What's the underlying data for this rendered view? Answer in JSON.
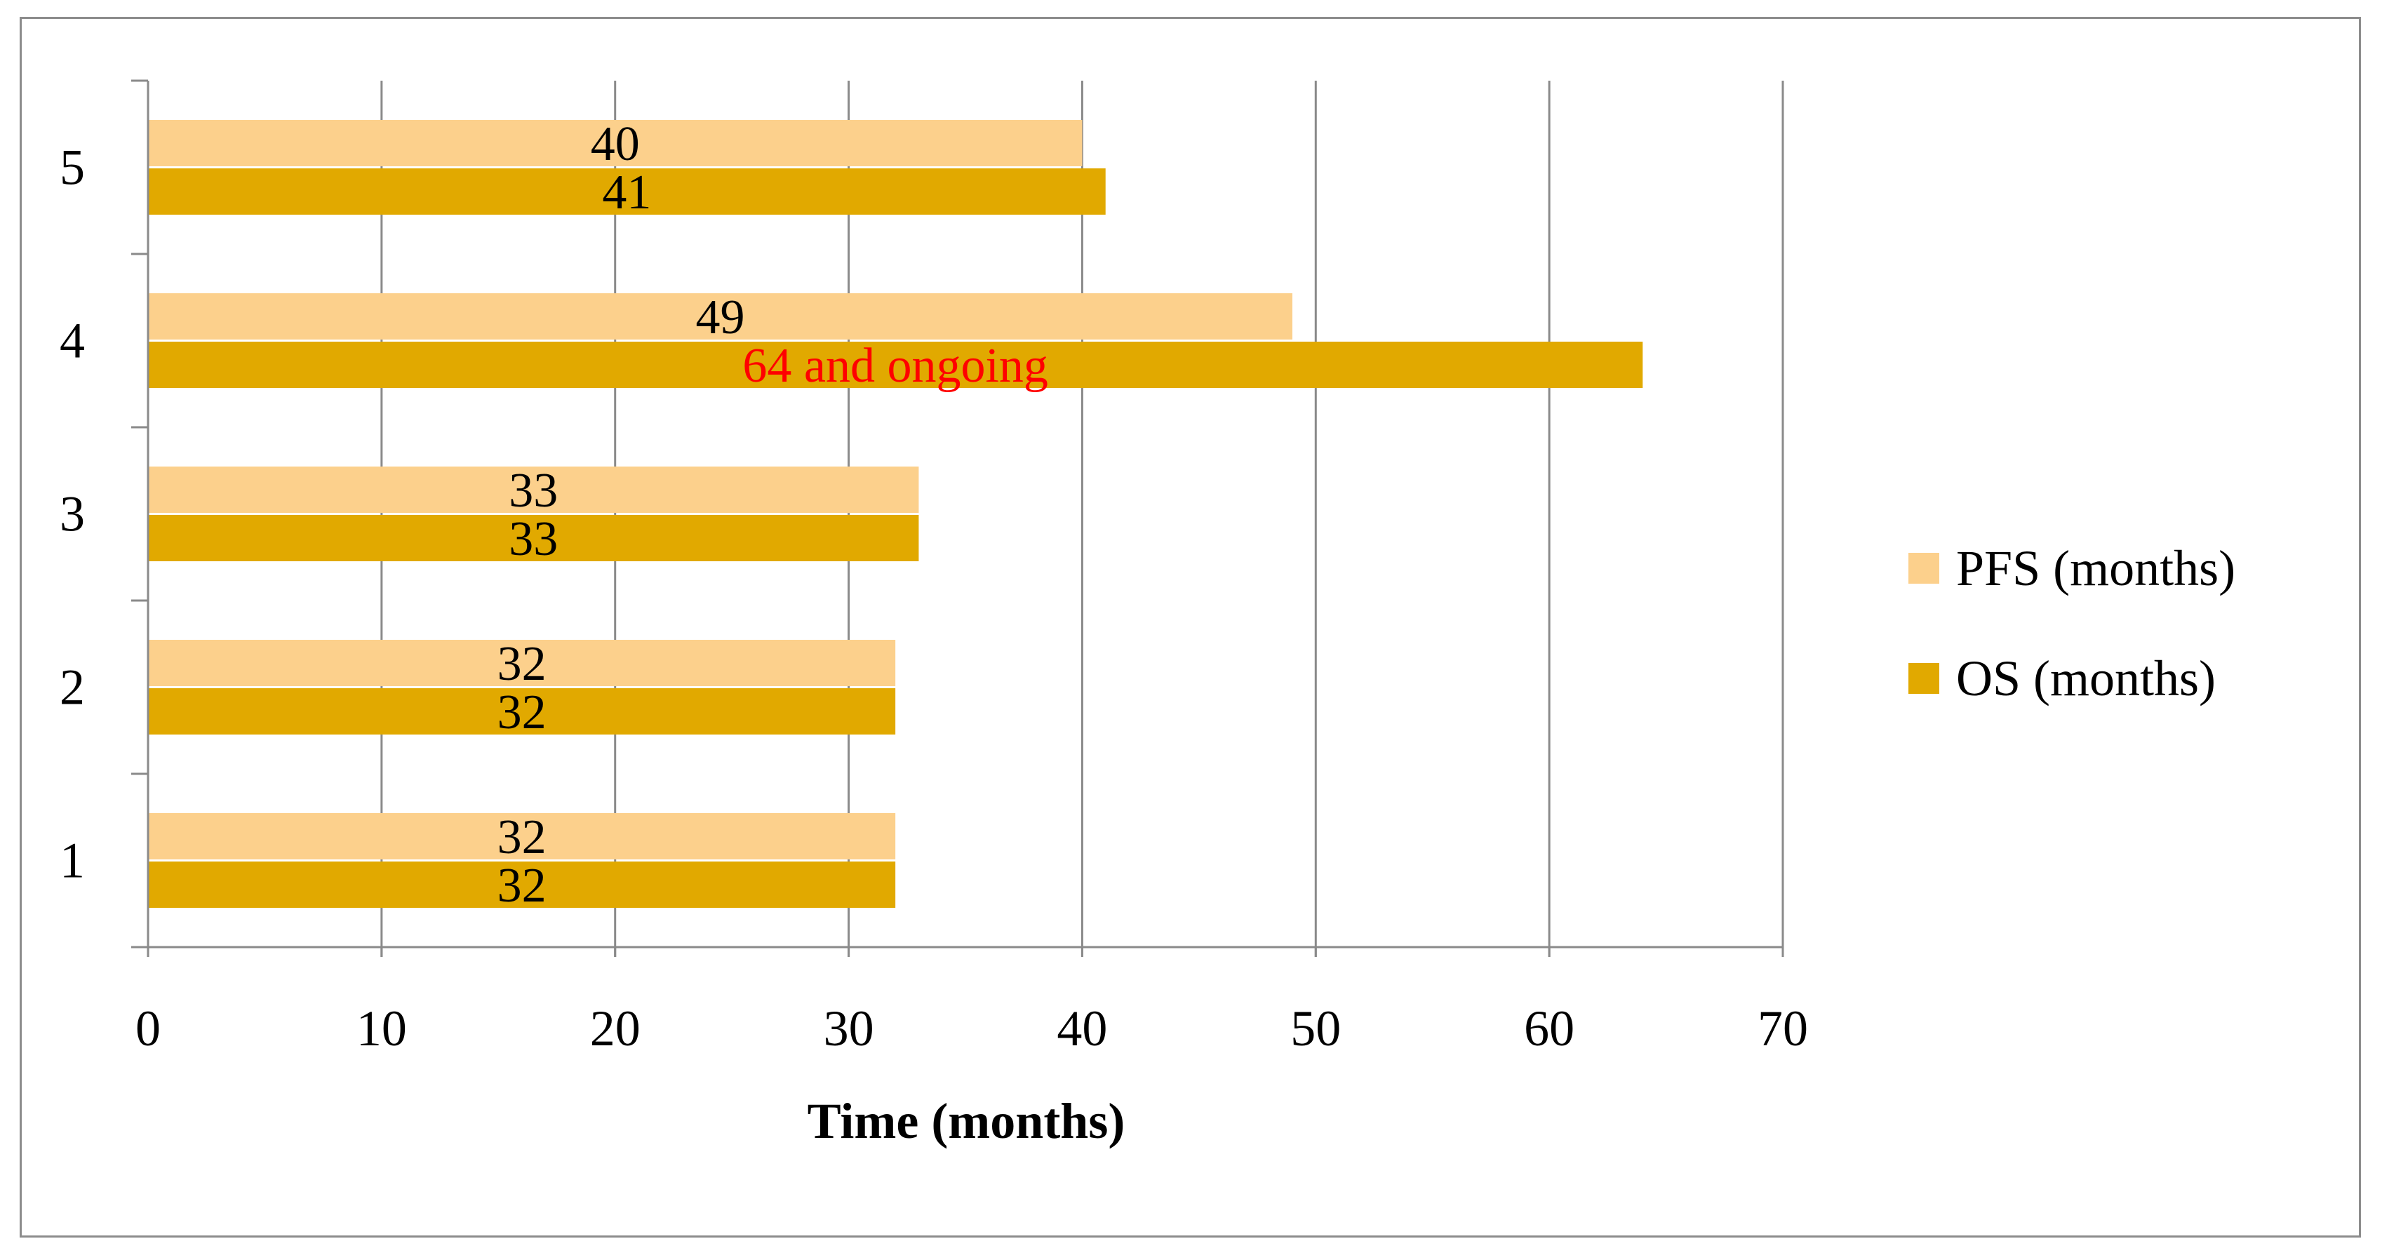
{
  "chart_data": {
    "type": "bar",
    "orientation": "horizontal",
    "categories": [
      "1",
      "2",
      "3",
      "4",
      "5"
    ],
    "series": [
      {
        "name": "PFS (months)",
        "color": "#FCD08C",
        "values": [
          32,
          32,
          33,
          49,
          40
        ],
        "labels": [
          "32",
          "32",
          "33",
          "49",
          "40"
        ],
        "label_colors": [
          "#000000",
          "#000000",
          "#000000",
          "#000000",
          "#000000"
        ]
      },
      {
        "name": "OS (months)",
        "color": "#E1A900",
        "values": [
          32,
          32,
          33,
          64,
          41
        ],
        "labels": [
          "32",
          "32",
          "33",
          "64 and ongoing",
          "41"
        ],
        "label_colors": [
          "#000000",
          "#000000",
          "#000000",
          "#FF0000",
          "#000000"
        ]
      }
    ],
    "xlabel": "Time (months)",
    "ylabel": "",
    "xlim": [
      0,
      70
    ],
    "xticks": [
      0,
      10,
      20,
      30,
      40,
      50,
      60,
      70
    ],
    "grid": true,
    "legend_position": "right"
  }
}
